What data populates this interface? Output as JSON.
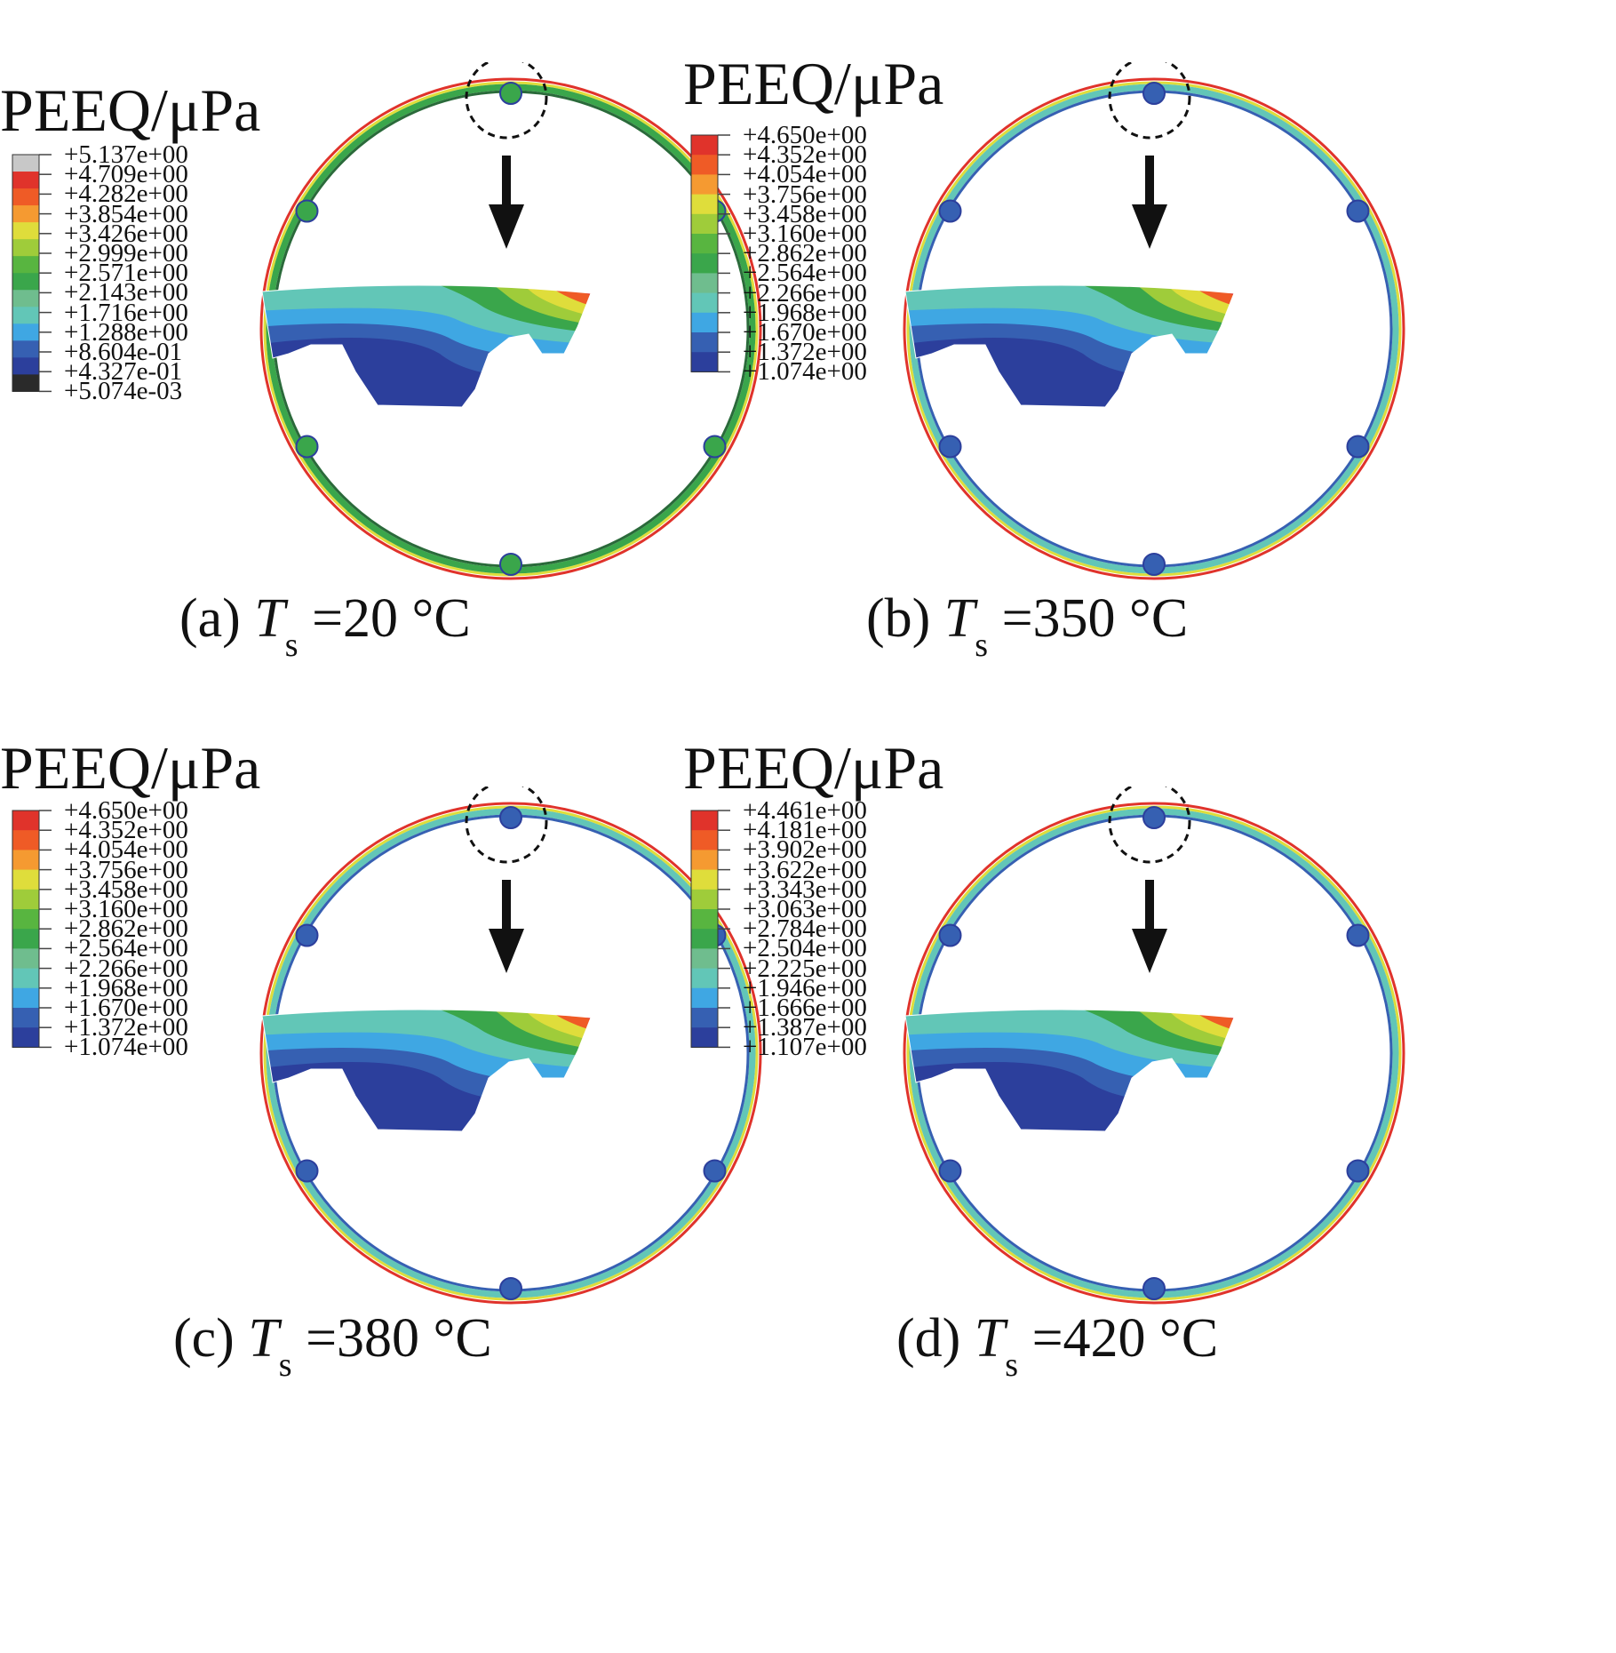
{
  "panels": [
    {
      "id": "a",
      "legend_title": "PEEQ/μPa",
      "legend_colors": [
        "#c8c8c8",
        "#e0332b",
        "#ef5b26",
        "#f59a31",
        "#dfdd3b",
        "#9fcc3a",
        "#58b540",
        "#3aa64b",
        "#6fbd8e",
        "#62c6b7",
        "#3fa7e3",
        "#3660b2",
        "#2c3f9c",
        "#2a2a2a"
      ],
      "legend_values": [
        "+5.137e+00",
        "+4.709e+00",
        "+4.282e+00",
        "+3.854e+00",
        "+3.426e+00",
        "+2.999e+00",
        "+2.571e+00",
        "+2.143e+00",
        "+1.716e+00",
        "+1.288e+00",
        "+8.604e-01",
        "+4.327e-01",
        "+5.074e-03"
      ],
      "caption": {
        "prefix": "(a) ",
        "symbol": "T",
        "sub": "s",
        "value": " =20 °C"
      }
    },
    {
      "id": "b",
      "legend_title": "PEEQ/μPa",
      "legend_colors": [
        "#e0332b",
        "#ef5b26",
        "#f59a31",
        "#dfdd3b",
        "#9fcc3a",
        "#58b540",
        "#3aa64b",
        "#6fbd8e",
        "#62c6b7",
        "#3fa7e3",
        "#3660b2",
        "#2c3f9c"
      ],
      "legend_values": [
        "+4.650e+00",
        "+4.352e+00",
        "+4.054e+00",
        "+3.756e+00",
        "+3.458e+00",
        "+3.160e+00",
        "+2.862e+00",
        "+2.564e+00",
        "+2.266e+00",
        "+1.968e+00",
        "+1.670e+00",
        "+1.372e+00",
        "+1.074e+00"
      ],
      "caption": {
        "prefix": "(b) ",
        "symbol": "T",
        "sub": "s",
        "value": " =350 °C"
      }
    },
    {
      "id": "c",
      "legend_title": "PEEQ/μPa",
      "legend_colors": [
        "#e0332b",
        "#ef5b26",
        "#f59a31",
        "#dfdd3b",
        "#9fcc3a",
        "#58b540",
        "#3aa64b",
        "#6fbd8e",
        "#62c6b7",
        "#3fa7e3",
        "#3660b2",
        "#2c3f9c"
      ],
      "legend_values": [
        "+4.650e+00",
        "+4.352e+00",
        "+4.054e+00",
        "+3.756e+00",
        "+3.458e+00",
        "+3.160e+00",
        "+2.862e+00",
        "+2.564e+00",
        "+2.266e+00",
        "+1.968e+00",
        "+1.670e+00",
        "+1.372e+00",
        "+1.074e+00"
      ],
      "caption": {
        "prefix": "(c) ",
        "symbol": "T",
        "sub": "s",
        "value": "  =380 °C"
      }
    },
    {
      "id": "d",
      "legend_title": "PEEQ/μPa",
      "legend_colors": [
        "#e0332b",
        "#ef5b26",
        "#f59a31",
        "#dfdd3b",
        "#9fcc3a",
        "#58b540",
        "#3aa64b",
        "#6fbd8e",
        "#62c6b7",
        "#3fa7e3",
        "#3660b2",
        "#2c3f9c"
      ],
      "legend_values": [
        "+4.461e+00",
        "+4.181e+00",
        "+3.902e+00",
        "+3.622e+00",
        "+3.343e+00",
        "+3.063e+00",
        "+2.784e+00",
        "+2.504e+00",
        "+2.225e+00",
        "+1.946e+00",
        "+1.666e+00",
        "+1.387e+00",
        "+1.107e+00"
      ],
      "caption": {
        "prefix": "(d) ",
        "symbol": "T",
        "sub": "s",
        "value": " =420 °C"
      }
    }
  ],
  "contour_colors": {
    "deep": "#2c3f9c",
    "blue": "#3660b2",
    "light_blue": "#3fa7e3",
    "teal": "#62c6b7",
    "green": "#3aa64b",
    "yellow_green": "#9fcc3a",
    "yellow": "#dfdd3b",
    "orange": "#ef5b26",
    "red": "#e0332b"
  }
}
